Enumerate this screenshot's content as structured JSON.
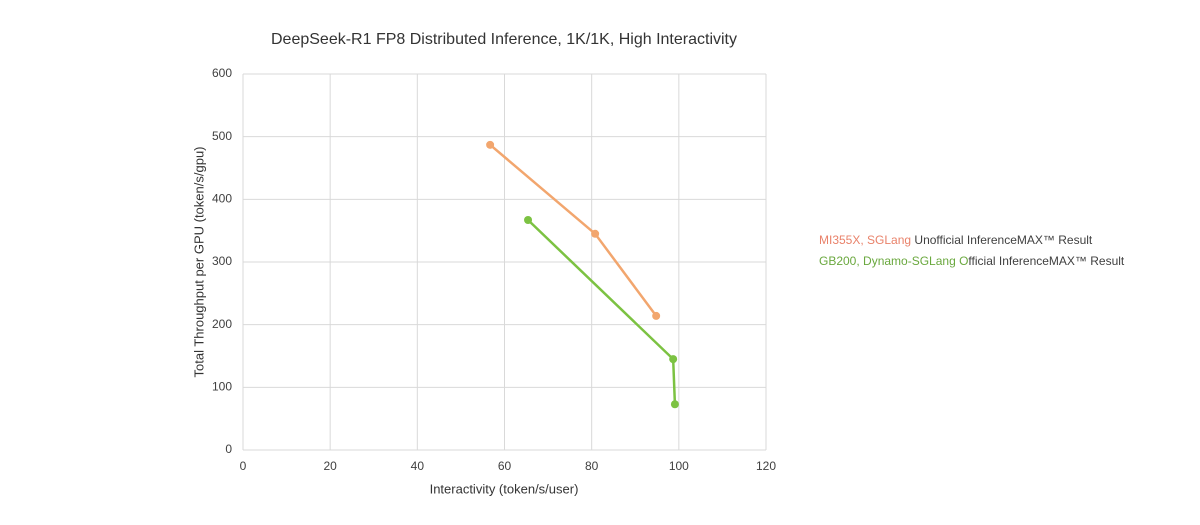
{
  "chart_data": {
    "type": "line",
    "title": "DeepSeek-R1 FP8 Distributed Inference, 1K/1K, High Interactivity",
    "x_label": "Interactivity (token/s/user)",
    "y_label": "Total Throughput per GPU (token/s/gpu)",
    "xlim": [
      0,
      120
    ],
    "xticks": [
      0,
      20,
      40,
      60,
      80,
      100,
      120
    ],
    "ylim": [
      0,
      600
    ],
    "yticks": [
      0,
      100,
      200,
      300,
      400,
      500,
      600
    ],
    "grid": true,
    "legend": "right",
    "series": [
      {
        "name": [
          "MI355X, SGLang",
          " Unofficial InferenceMAX™ Result"
        ],
        "color": "#f2a66e",
        "legend_color": "#e9826a",
        "x": [
          56.7,
          80.8,
          94.8
        ],
        "values": [
          487,
          345,
          214
        ]
      },
      {
        "name": [
          "GB200, Dynamo-SGLang O",
          "fficial InferenceMAX™ Result"
        ],
        "color": "#7cc242",
        "legend_color": "#6aa83e",
        "x": [
          65.4,
          98.7,
          99.1
        ],
        "values": [
          367,
          145,
          73
        ]
      }
    ]
  }
}
